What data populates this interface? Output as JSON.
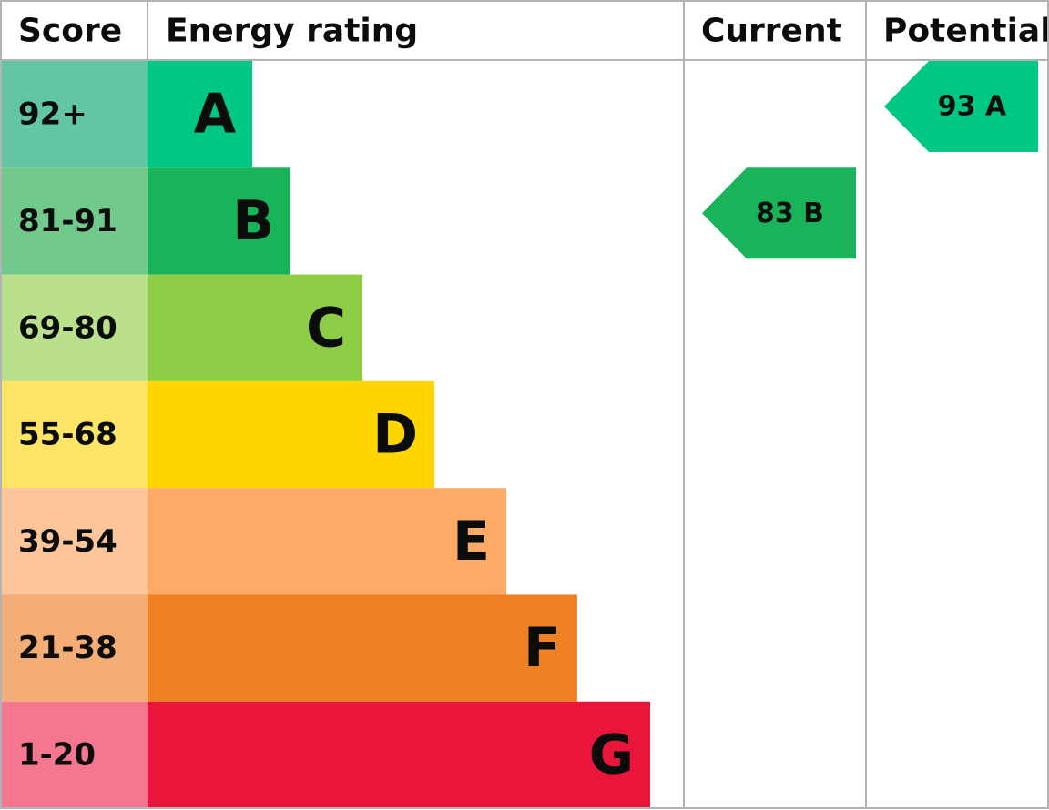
{
  "header": {
    "score": "Score",
    "rating": "Energy rating",
    "current": "Current",
    "potential": "Potential"
  },
  "rows": [
    {
      "score": "92+",
      "letter": "A",
      "score_color": "#62c6a3",
      "bar_color": "#00c781"
    },
    {
      "score": "81-91",
      "letter": "B",
      "score_color": "#72c98c",
      "bar_color": "#19b459"
    },
    {
      "score": "69-80",
      "letter": "C",
      "score_color": "#bae08c",
      "bar_color": "#8dce46"
    },
    {
      "score": "55-68",
      "letter": "D",
      "score_color": "#ffe566",
      "bar_color": "#ffd500"
    },
    {
      "score": "39-54",
      "letter": "E",
      "score_color": "#fdc59a",
      "bar_color": "#fcaa65"
    },
    {
      "score": "21-38",
      "letter": "F",
      "score_color": "#f4ad75",
      "bar_color": "#ef8023"
    },
    {
      "score": "1-20",
      "letter": "G",
      "score_color": "#f4768f",
      "bar_color": "#e9153b"
    }
  ],
  "current": {
    "label": "83 B",
    "row": 1
  },
  "potential": {
    "label": "93 A",
    "row": 0
  }
}
